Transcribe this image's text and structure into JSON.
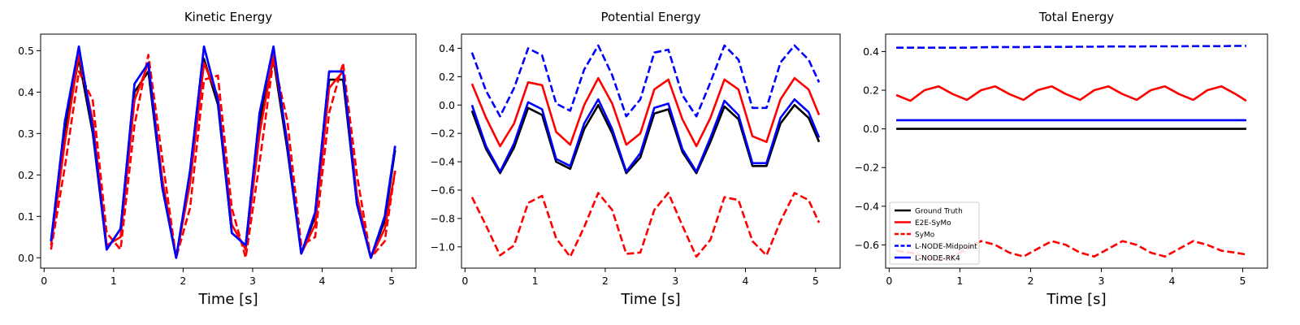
{
  "chart_data": [
    {
      "type": "line",
      "title": "Kinetic Energy",
      "xlabel": "Time [s]",
      "ylabel": "",
      "xlim": [
        -0.05,
        5.35
      ],
      "ylim": [
        -0.025,
        0.54
      ],
      "xticks": [
        0,
        1,
        2,
        3,
        4,
        5
      ],
      "yticks": [
        0.0,
        0.1,
        0.2,
        0.3,
        0.4,
        0.5
      ],
      "xtick_labels": [
        "0",
        "1",
        "2",
        "3",
        "4",
        "5"
      ],
      "ytick_labels": [
        "0.0",
        "0.1",
        "0.2",
        "0.3",
        "0.4",
        "0.5"
      ],
      "grid": false,
      "legend": null,
      "x": [
        0.1,
        0.3,
        0.5,
        0.7,
        0.9,
        1.1,
        1.3,
        1.5,
        1.7,
        1.9,
        2.1,
        2.3,
        2.5,
        2.7,
        2.9,
        3.1,
        3.3,
        3.5,
        3.7,
        3.9,
        4.1,
        4.3,
        4.5,
        4.7,
        4.9,
        5.05
      ],
      "series": [
        {
          "name": "Ground Truth",
          "color": "#000000",
          "dash": "solid",
          "values": [
            0.04,
            0.31,
            0.48,
            0.3,
            0.02,
            0.07,
            0.4,
            0.45,
            0.17,
            0.0,
            0.2,
            0.48,
            0.37,
            0.06,
            0.03,
            0.33,
            0.48,
            0.26,
            0.01,
            0.1,
            0.43,
            0.43,
            0.13,
            0.0,
            0.09,
            0.26
          ]
        },
        {
          "name": "E2E-SyMo",
          "color": "#ff0000",
          "dash": "solid",
          "values": [
            0.03,
            0.28,
            0.49,
            0.33,
            0.03,
            0.05,
            0.38,
            0.47,
            0.19,
            0.0,
            0.18,
            0.47,
            0.39,
            0.08,
            0.02,
            0.3,
            0.49,
            0.28,
            0.01,
            0.08,
            0.41,
            0.45,
            0.15,
            0.0,
            0.07,
            0.21
          ]
        },
        {
          "name": "SyMo",
          "color": "#ff0000",
          "dash": "dashed",
          "values": [
            0.02,
            0.22,
            0.45,
            0.38,
            0.06,
            0.02,
            0.32,
            0.49,
            0.24,
            0.0,
            0.12,
            0.43,
            0.44,
            0.12,
            0.0,
            0.23,
            0.48,
            0.33,
            0.03,
            0.05,
            0.35,
            0.47,
            0.2,
            0.0,
            0.04,
            0.21
          ]
        },
        {
          "name": "L-NODE-Midpoint",
          "color": "#0000ff",
          "dash": "dashed",
          "values": [
            0.04,
            0.33,
            0.51,
            0.31,
            0.02,
            0.07,
            0.42,
            0.47,
            0.17,
            0.0,
            0.21,
            0.51,
            0.38,
            0.06,
            0.03,
            0.35,
            0.51,
            0.27,
            0.01,
            0.11,
            0.45,
            0.45,
            0.13,
            0.0,
            0.1,
            0.27
          ]
        },
        {
          "name": "L-NODE-RK4",
          "color": "#0000ff",
          "dash": "solid",
          "values": [
            0.04,
            0.33,
            0.51,
            0.31,
            0.02,
            0.07,
            0.42,
            0.47,
            0.17,
            0.0,
            0.21,
            0.51,
            0.38,
            0.06,
            0.03,
            0.35,
            0.51,
            0.27,
            0.01,
            0.11,
            0.45,
            0.45,
            0.13,
            0.0,
            0.1,
            0.27
          ]
        }
      ]
    },
    {
      "type": "line",
      "title": "Potential Energy",
      "xlabel": "Time [s]",
      "ylabel": "",
      "xlim": [
        -0.05,
        5.35
      ],
      "ylim": [
        -1.15,
        0.5
      ],
      "xticks": [
        0,
        1,
        2,
        3,
        4,
        5
      ],
      "yticks": [
        -1.0,
        -0.8,
        -0.6,
        -0.4,
        -0.2,
        0.0,
        0.2,
        0.4
      ],
      "xtick_labels": [
        "0",
        "1",
        "2",
        "3",
        "4",
        "5"
      ],
      "ytick_labels": [
        "−1.0",
        "−0.8",
        "−0.6",
        "−0.4",
        "−0.2",
        "0.0",
        "0.2",
        "0.4"
      ],
      "grid": false,
      "legend": null,
      "x": [
        0.1,
        0.3,
        0.5,
        0.7,
        0.9,
        1.1,
        1.3,
        1.5,
        1.7,
        1.9,
        2.1,
        2.3,
        2.5,
        2.7,
        2.9,
        3.1,
        3.3,
        3.5,
        3.7,
        3.9,
        4.1,
        4.3,
        4.5,
        4.7,
        4.9,
        5.05
      ],
      "series": [
        {
          "name": "Ground Truth",
          "color": "#000000",
          "dash": "solid",
          "values": [
            -0.04,
            -0.31,
            -0.48,
            -0.3,
            -0.02,
            -0.07,
            -0.4,
            -0.45,
            -0.17,
            0.0,
            -0.2,
            -0.48,
            -0.37,
            -0.06,
            -0.03,
            -0.33,
            -0.48,
            -0.26,
            -0.01,
            -0.1,
            -0.43,
            -0.43,
            -0.13,
            0.0,
            -0.09,
            -0.26
          ]
        },
        {
          "name": "E2E-SyMo",
          "color": "#ff0000",
          "dash": "solid",
          "values": [
            0.15,
            -0.09,
            -0.29,
            -0.13,
            0.16,
            0.14,
            -0.19,
            -0.28,
            0.0,
            0.19,
            0.01,
            -0.28,
            -0.2,
            0.11,
            0.18,
            -0.1,
            -0.29,
            -0.09,
            0.18,
            0.11,
            -0.22,
            -0.26,
            0.04,
            0.19,
            0.11,
            -0.07
          ]
        },
        {
          "name": "SyMo",
          "color": "#ff0000",
          "dash": "dashed",
          "values": [
            -0.65,
            -0.85,
            -1.06,
            -0.99,
            -0.69,
            -0.64,
            -0.94,
            -1.07,
            -0.86,
            -0.62,
            -0.74,
            -1.05,
            -1.04,
            -0.74,
            -0.62,
            -0.85,
            -1.07,
            -0.95,
            -0.65,
            -0.67,
            -0.96,
            -1.06,
            -0.82,
            -0.62,
            -0.67,
            -0.83
          ]
        },
        {
          "name": "L-NODE-Midpoint",
          "color": "#0000ff",
          "dash": "dashed",
          "values": [
            0.37,
            0.1,
            -0.08,
            0.12,
            0.4,
            0.35,
            0.01,
            -0.04,
            0.25,
            0.42,
            0.21,
            -0.08,
            0.04,
            0.37,
            0.39,
            0.07,
            -0.08,
            0.16,
            0.42,
            0.32,
            -0.02,
            -0.02,
            0.3,
            0.42,
            0.32,
            0.16
          ]
        },
        {
          "name": "L-NODE-RK4",
          "color": "#0000ff",
          "dash": "solid",
          "values": [
            0.0,
            -0.29,
            -0.47,
            -0.27,
            0.02,
            -0.03,
            -0.38,
            -0.43,
            -0.13,
            0.04,
            -0.17,
            -0.47,
            -0.34,
            -0.02,
            0.01,
            -0.31,
            -0.47,
            -0.23,
            0.03,
            -0.07,
            -0.41,
            -0.41,
            -0.09,
            0.04,
            -0.05,
            -0.23
          ]
        }
      ]
    },
    {
      "type": "line",
      "title": "Total Energy",
      "xlabel": "Time [s]",
      "ylabel": "",
      "xlim": [
        -0.05,
        5.35
      ],
      "ylim": [
        -0.72,
        0.49
      ],
      "xticks": [
        0,
        1,
        2,
        3,
        4,
        5
      ],
      "yticks": [
        -0.6,
        -0.4,
        -0.2,
        0.0,
        0.2,
        0.4
      ],
      "xtick_labels": [
        "0",
        "1",
        "2",
        "3",
        "4",
        "5"
      ],
      "ytick_labels": [
        "−0.6",
        "−0.4",
        "−0.2",
        "0.0",
        "0.2",
        "0.4"
      ],
      "grid": false,
      "legend": "lower left",
      "x": [
        0.1,
        0.3,
        0.5,
        0.7,
        0.9,
        1.1,
        1.3,
        1.5,
        1.7,
        1.9,
        2.1,
        2.3,
        2.5,
        2.7,
        2.9,
        3.1,
        3.3,
        3.5,
        3.7,
        3.9,
        4.1,
        4.3,
        4.5,
        4.7,
        4.9,
        5.05
      ],
      "series": [
        {
          "name": "Ground Truth",
          "color": "#000000",
          "dash": "solid",
          "values": [
            0.0,
            0.0,
            0.0,
            0.0,
            0.0,
            0.0,
            0.0,
            0.0,
            0.0,
            0.0,
            0.0,
            0.0,
            0.0,
            0.0,
            0.0,
            0.0,
            0.0,
            0.0,
            0.0,
            0.0,
            0.0,
            0.0,
            0.0,
            0.0,
            0.0,
            0.0
          ]
        },
        {
          "name": "E2E-SyMo",
          "color": "#ff0000",
          "dash": "solid",
          "values": [
            0.175,
            0.145,
            0.2,
            0.22,
            0.18,
            0.15,
            0.2,
            0.22,
            0.18,
            0.15,
            0.2,
            0.22,
            0.18,
            0.15,
            0.2,
            0.22,
            0.18,
            0.15,
            0.2,
            0.22,
            0.18,
            0.15,
            0.2,
            0.22,
            0.18,
            0.145
          ]
        },
        {
          "name": "SyMo",
          "color": "#ff0000",
          "dash": "dashed",
          "values": [
            -0.63,
            -0.64,
            -0.66,
            -0.68,
            -0.66,
            -0.62,
            -0.58,
            -0.6,
            -0.64,
            -0.66,
            -0.62,
            -0.58,
            -0.6,
            -0.64,
            -0.66,
            -0.62,
            -0.58,
            -0.6,
            -0.64,
            -0.66,
            -0.62,
            -0.58,
            -0.6,
            -0.63,
            -0.64,
            -0.65
          ]
        },
        {
          "name": "L-NODE-Midpoint",
          "color": "#0000ff",
          "dash": "dashed",
          "values": [
            0.42,
            0.42,
            0.42,
            0.42,
            0.42,
            0.42,
            0.422,
            0.423,
            0.423,
            0.423,
            0.424,
            0.424,
            0.424,
            0.425,
            0.425,
            0.426,
            0.426,
            0.426,
            0.427,
            0.427,
            0.427,
            0.428,
            0.428,
            0.428,
            0.429,
            0.429
          ]
        },
        {
          "name": "L-NODE-RK4",
          "color": "#0000ff",
          "dash": "solid",
          "values": [
            0.045,
            0.045,
            0.045,
            0.045,
            0.045,
            0.045,
            0.045,
            0.045,
            0.045,
            0.045,
            0.045,
            0.045,
            0.045,
            0.045,
            0.045,
            0.045,
            0.045,
            0.045,
            0.045,
            0.045,
            0.045,
            0.045,
            0.045,
            0.045,
            0.045,
            0.045
          ]
        }
      ]
    }
  ]
}
